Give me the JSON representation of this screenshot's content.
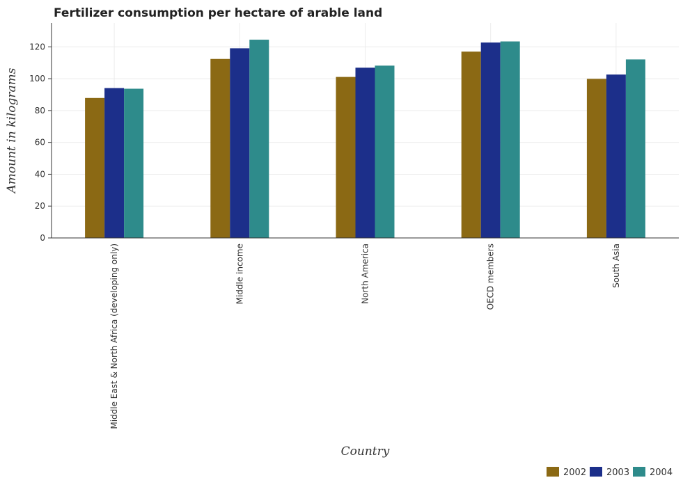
{
  "chart_data": {
    "type": "bar",
    "title": "Fertilizer consumption per hectare of arable land",
    "xlabel": "Country",
    "ylabel": "Amount in kilograms",
    "ylim": [
      0,
      135
    ],
    "yticks": [
      0,
      20,
      40,
      60,
      80,
      100,
      120
    ],
    "grid": true,
    "legend_position": "bottom-right",
    "categories": [
      "Middle East & North Africa (developing only)",
      "Middle income",
      "North America",
      "OECD members",
      "South Asia"
    ],
    "series": [
      {
        "name": "2002",
        "color": "#8b6914",
        "values": [
          87.9,
          112.4,
          101.1,
          117.0,
          99.9
        ]
      },
      {
        "name": "2003",
        "color": "#1c2f8a",
        "values": [
          94.1,
          119.1,
          106.9,
          122.7,
          102.6
        ]
      },
      {
        "name": "2004",
        "color": "#2e8b8b",
        "values": [
          93.7,
          124.5,
          108.2,
          123.4,
          112.1
        ]
      }
    ]
  }
}
